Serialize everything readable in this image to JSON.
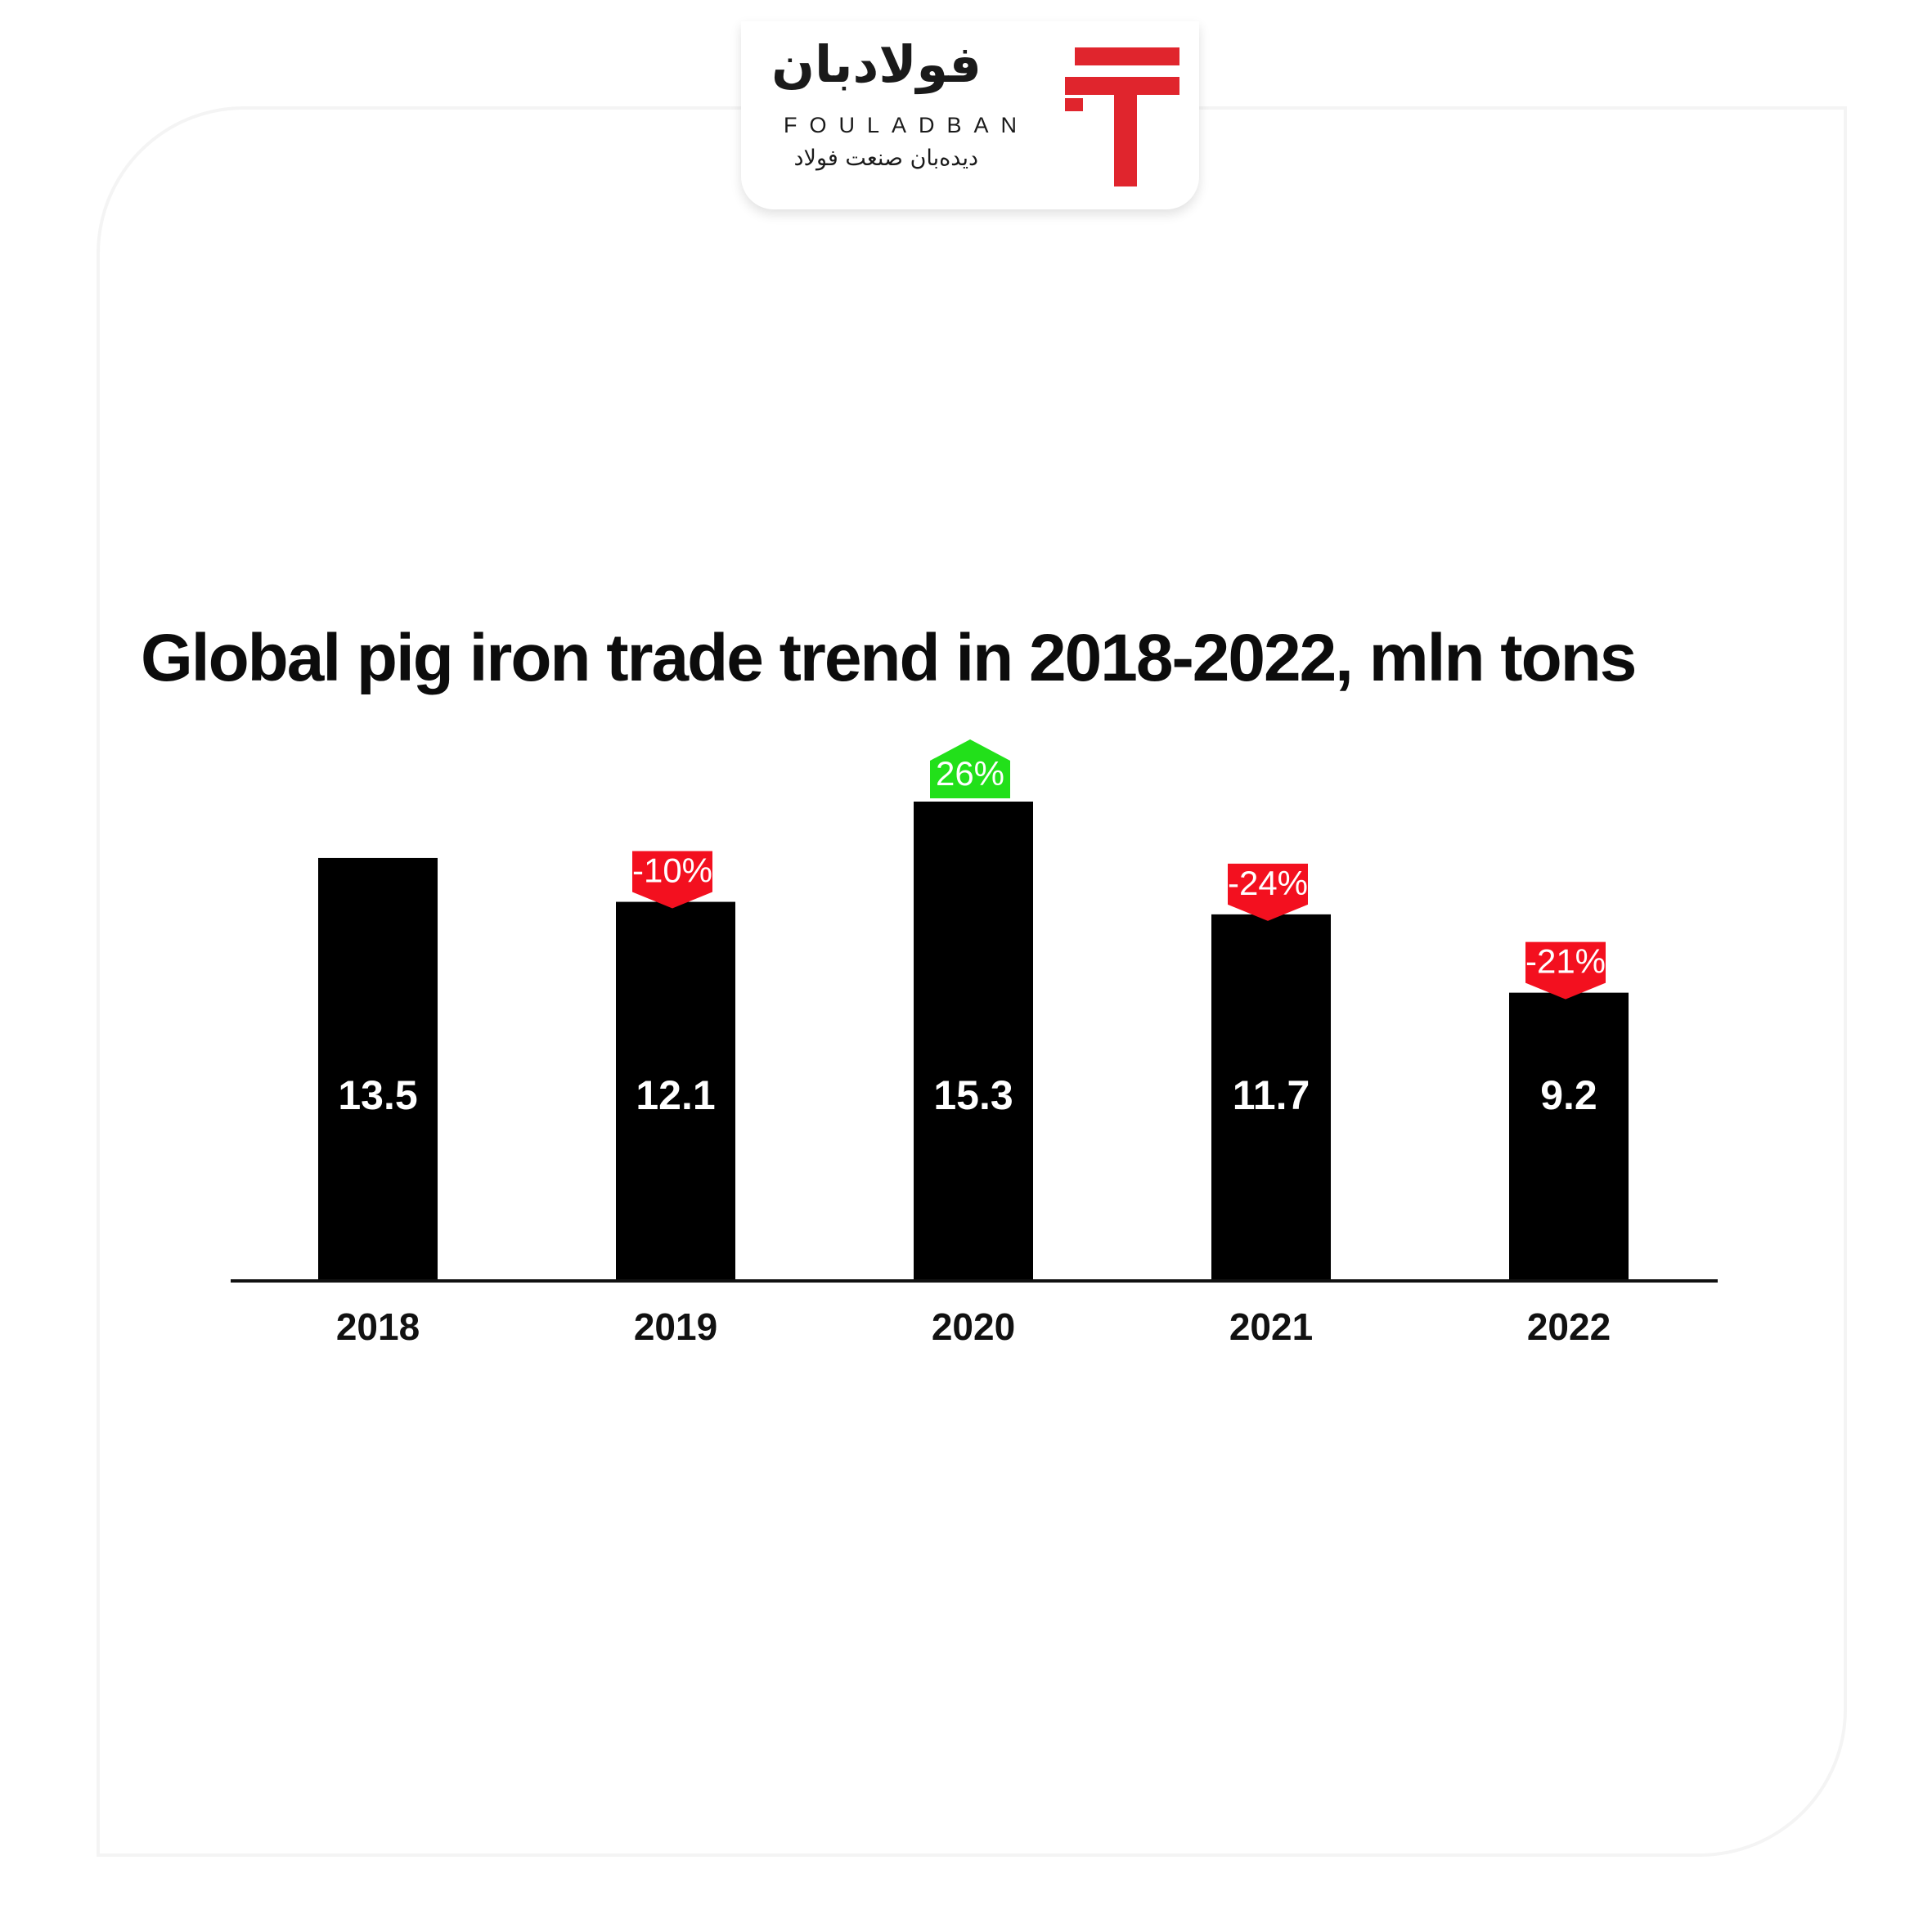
{
  "logo": {
    "name_fa": "فولادبان",
    "name_en": "FOULADBAN",
    "tagline_fa": "دیده‌بان صنعت فولاد",
    "accent_color": "#e0252d",
    "icon": "fouladban-logo-icon"
  },
  "chart_data": {
    "type": "bar",
    "title": "Global pig iron trade trend in 2018-2022, mln tons",
    "categories": [
      "2018",
      "2019",
      "2020",
      "2021",
      "2022"
    ],
    "values": [
      13.5,
      12.1,
      15.3,
      11.7,
      9.2
    ],
    "value_labels": [
      "13.5",
      "12.1",
      "15.3",
      "11.7",
      "9.2"
    ],
    "change_labels": [
      "",
      "-10%",
      "26%",
      "-24%",
      "-21%"
    ],
    "change_direction": [
      "",
      "down",
      "up",
      "down",
      "down"
    ],
    "bar_color": "#000000",
    "up_color": "#22e01a",
    "down_color": "#f3101f",
    "xlabel": "",
    "ylabel": "",
    "ylim": [
      0,
      15.3
    ],
    "grid": false,
    "legend": "none"
  }
}
